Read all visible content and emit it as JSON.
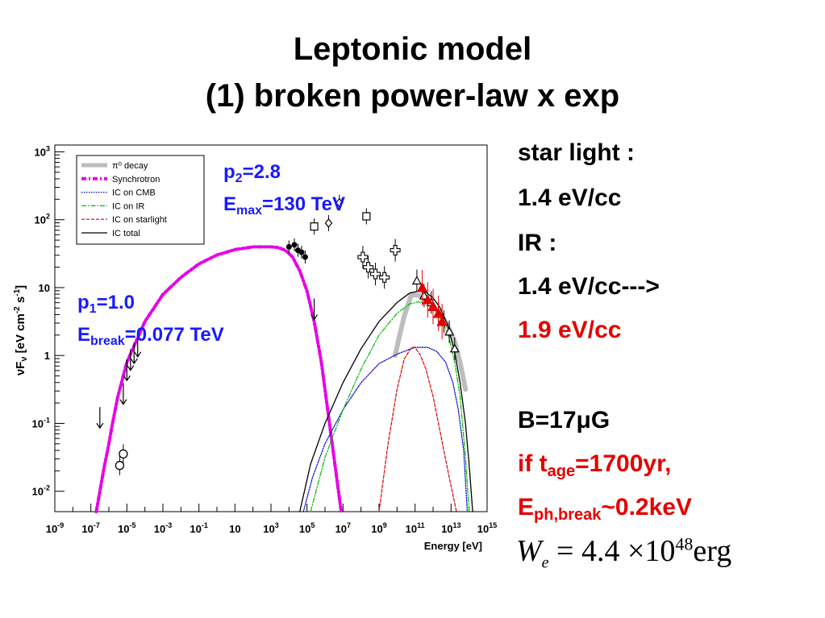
{
  "title": {
    "line1": "Leptonic model",
    "line2": "(1) broken power-law x exp"
  },
  "params": {
    "p2": {
      "symbol": "p",
      "sub": "2",
      "value": "=2.8"
    },
    "emax": {
      "symbol": "E",
      "sub": "max",
      "value": "=130 TeV"
    },
    "p1": {
      "symbol": "p",
      "sub": "1",
      "value": "=1.0"
    },
    "ebreak": {
      "symbol": "E",
      "sub": "break",
      "value": "=0.077 TeV"
    }
  },
  "sidebar": {
    "star_light": "star light :",
    "star_value": "1.4 eV/cc",
    "ir": "IR :",
    "ir_value": "1.4 eV/cc--->",
    "ir_new": "1.9 eV/cc",
    "b_field": "B=17μG",
    "age_prefix": "if t",
    "age_sub": "age",
    "age_value": "=1700yr,",
    "eph_prefix": "E",
    "eph_sub": "ph,break",
    "eph_value": "~0.2keV"
  },
  "equation": {
    "lhs": "W",
    "lhs_sub": "e",
    "rhs": "= 4.4 ×10",
    "exp": "48",
    "unit": "erg"
  },
  "colors": {
    "pi0": "#bdbdbd",
    "synchrotron": "#e600e6",
    "ic_cmb": "#0000cc",
    "ic_ir": "#00bb00",
    "ic_starlight": "#dd0000",
    "ic_total": "#000000",
    "param_text": "#1a1aff",
    "highlight": "#e60000"
  },
  "chart_data": {
    "type": "line",
    "xlabel": "Energy [eV]",
    "ylabel": "νF_ν [eV cm^-2 s^-1]",
    "xscale": "log",
    "yscale": "log",
    "xlim_exp": [
      -9,
      15
    ],
    "ylim_exp": [
      -2.3,
      3.1
    ],
    "x_ticks": [
      "10^-9",
      "10^-7",
      "10^-5",
      "10^-3",
      "10^-1",
      "10",
      "10^3",
      "10^5",
      "10^7",
      "10^9",
      "10^11",
      "10^13",
      "10^15"
    ],
    "y_ticks": [
      "10^-2",
      "10^-1",
      "1",
      "10",
      "10^2",
      "10^3"
    ],
    "legend_position": "top-left",
    "series": [
      {
        "name": "π⁰ decay",
        "style": "thick",
        "x_log": [
          9.9,
          10.1,
          10.4,
          10.8,
          11.3,
          11.8,
          12.3,
          12.8,
          13.2,
          13.5,
          13.8
        ],
        "y_log": [
          0.0,
          0.25,
          0.58,
          0.9,
          0.88,
          0.78,
          0.65,
          0.45,
          0.2,
          -0.1,
          -0.5
        ]
      },
      {
        "name": "Synchrotron",
        "style": "dash-dot",
        "x_log": [
          -6.7,
          -6.3,
          -6.0,
          -5.8,
          -5.5,
          -5.0,
          -4.0,
          -3.0,
          -2.0,
          -1.0,
          0.0,
          1.0,
          2.0,
          3.0,
          3.4,
          3.8,
          4.2,
          4.6,
          5.0,
          5.4,
          5.8,
          6.1,
          6.4,
          6.7,
          6.9
        ],
        "y_log": [
          -2.3,
          -1.7,
          -1.3,
          -1.0,
          -0.6,
          -0.1,
          0.5,
          0.9,
          1.15,
          1.35,
          1.48,
          1.56,
          1.6,
          1.6,
          1.59,
          1.55,
          1.45,
          1.25,
          0.95,
          0.5,
          -0.1,
          -0.7,
          -1.3,
          -1.9,
          -2.3
        ]
      },
      {
        "name": "IC on CMB",
        "style": "dotted",
        "x_log": [
          4.8,
          5.3,
          6.0,
          7.0,
          8.0,
          9.0,
          10.0,
          11.0,
          11.7,
          12.2,
          12.7,
          13.1,
          13.4,
          13.7,
          13.9
        ],
        "y_log": [
          -2.3,
          -1.8,
          -1.3,
          -0.8,
          -0.4,
          -0.12,
          0.02,
          0.12,
          0.12,
          0.06,
          -0.1,
          -0.4,
          -0.8,
          -1.4,
          -2.3
        ]
      },
      {
        "name": "IC on IR",
        "style": "dash-dot",
        "x_log": [
          5.2,
          6.0,
          7.0,
          8.0,
          9.0,
          10.0,
          10.7,
          11.2,
          11.7,
          12.1,
          12.5,
          12.9,
          13.2,
          13.5,
          13.8,
          14.0
        ],
        "y_log": [
          -2.3,
          -1.5,
          -0.8,
          -0.2,
          0.3,
          0.62,
          0.76,
          0.79,
          0.76,
          0.68,
          0.52,
          0.25,
          -0.1,
          -0.6,
          -1.5,
          -2.3
        ]
      },
      {
        "name": "IC on starlight",
        "style": "dashed",
        "x_log": [
          9.0,
          9.5,
          10.0,
          10.4,
          10.8,
          11.0,
          11.3,
          11.6,
          12.0,
          12.3,
          12.6,
          12.9,
          13.1,
          13.3
        ],
        "y_log": [
          -2.3,
          -1.3,
          -0.5,
          -0.05,
          0.12,
          0.12,
          0.0,
          -0.2,
          -0.6,
          -1.0,
          -1.4,
          -1.8,
          -2.05,
          -2.3
        ]
      },
      {
        "name": "IC total",
        "style": "solid",
        "x_log": [
          4.6,
          5.2,
          6.0,
          7.0,
          8.0,
          9.0,
          10.0,
          10.7,
          11.2,
          11.6,
          12.0,
          12.4,
          12.8,
          13.2,
          13.5,
          13.8,
          14.0,
          14.2
        ],
        "y_log": [
          -2.3,
          -1.6,
          -1.0,
          -0.4,
          0.1,
          0.5,
          0.78,
          0.92,
          0.95,
          0.93,
          0.85,
          0.7,
          0.45,
          0.05,
          -0.4,
          -1.0,
          -1.6,
          -2.3
        ]
      }
    ],
    "observations": [
      {
        "marker": "circle",
        "x_log": [
          -5.4,
          -5.2
        ],
        "y_log": [
          -1.62,
          -1.45
        ]
      },
      {
        "marker": "upper-limit",
        "x_log": [
          -6.5,
          -5.2,
          -5.0,
          -4.8,
          -4.6,
          -4.4
        ],
        "y_log": [
          -0.95,
          -0.6,
          -0.25,
          -0.1,
          0.0,
          0.1
        ]
      },
      {
        "marker": "filled",
        "x_log": [
          4.0,
          4.3,
          4.5,
          4.7,
          4.9
        ],
        "y_log": [
          1.6,
          1.63,
          1.55,
          1.52,
          1.45
        ]
      },
      {
        "marker": "upper-limit",
        "x_log": [
          5.4
        ],
        "y_log": [
          0.65
        ]
      },
      {
        "marker": "diamond",
        "x_log": [
          6.2,
          6.8
        ],
        "y_log": [
          1.95,
          2.25
        ]
      },
      {
        "marker": "square",
        "x_log": [
          5.4,
          8.3
        ],
        "y_log": [
          1.9,
          2.05
        ]
      },
      {
        "marker": "cross",
        "x_log": [
          8.1,
          8.4,
          8.8,
          9.3,
          9.9
        ],
        "y_log": [
          1.45,
          1.3,
          1.2,
          1.15,
          1.55
        ]
      },
      {
        "marker": "triangle",
        "x_log": [
          11.1,
          11.5,
          11.9,
          12.3,
          12.6,
          12.9,
          13.2
        ],
        "y_log": [
          1.1,
          0.88,
          0.78,
          0.62,
          0.5,
          0.35,
          0.1
        ]
      },
      {
        "marker": "red-triangle",
        "x_log": [
          11.4,
          11.7,
          12.0,
          12.3,
          12.5
        ],
        "y_log": [
          1.0,
          0.82,
          0.72,
          0.62,
          0.5
        ]
      }
    ]
  }
}
